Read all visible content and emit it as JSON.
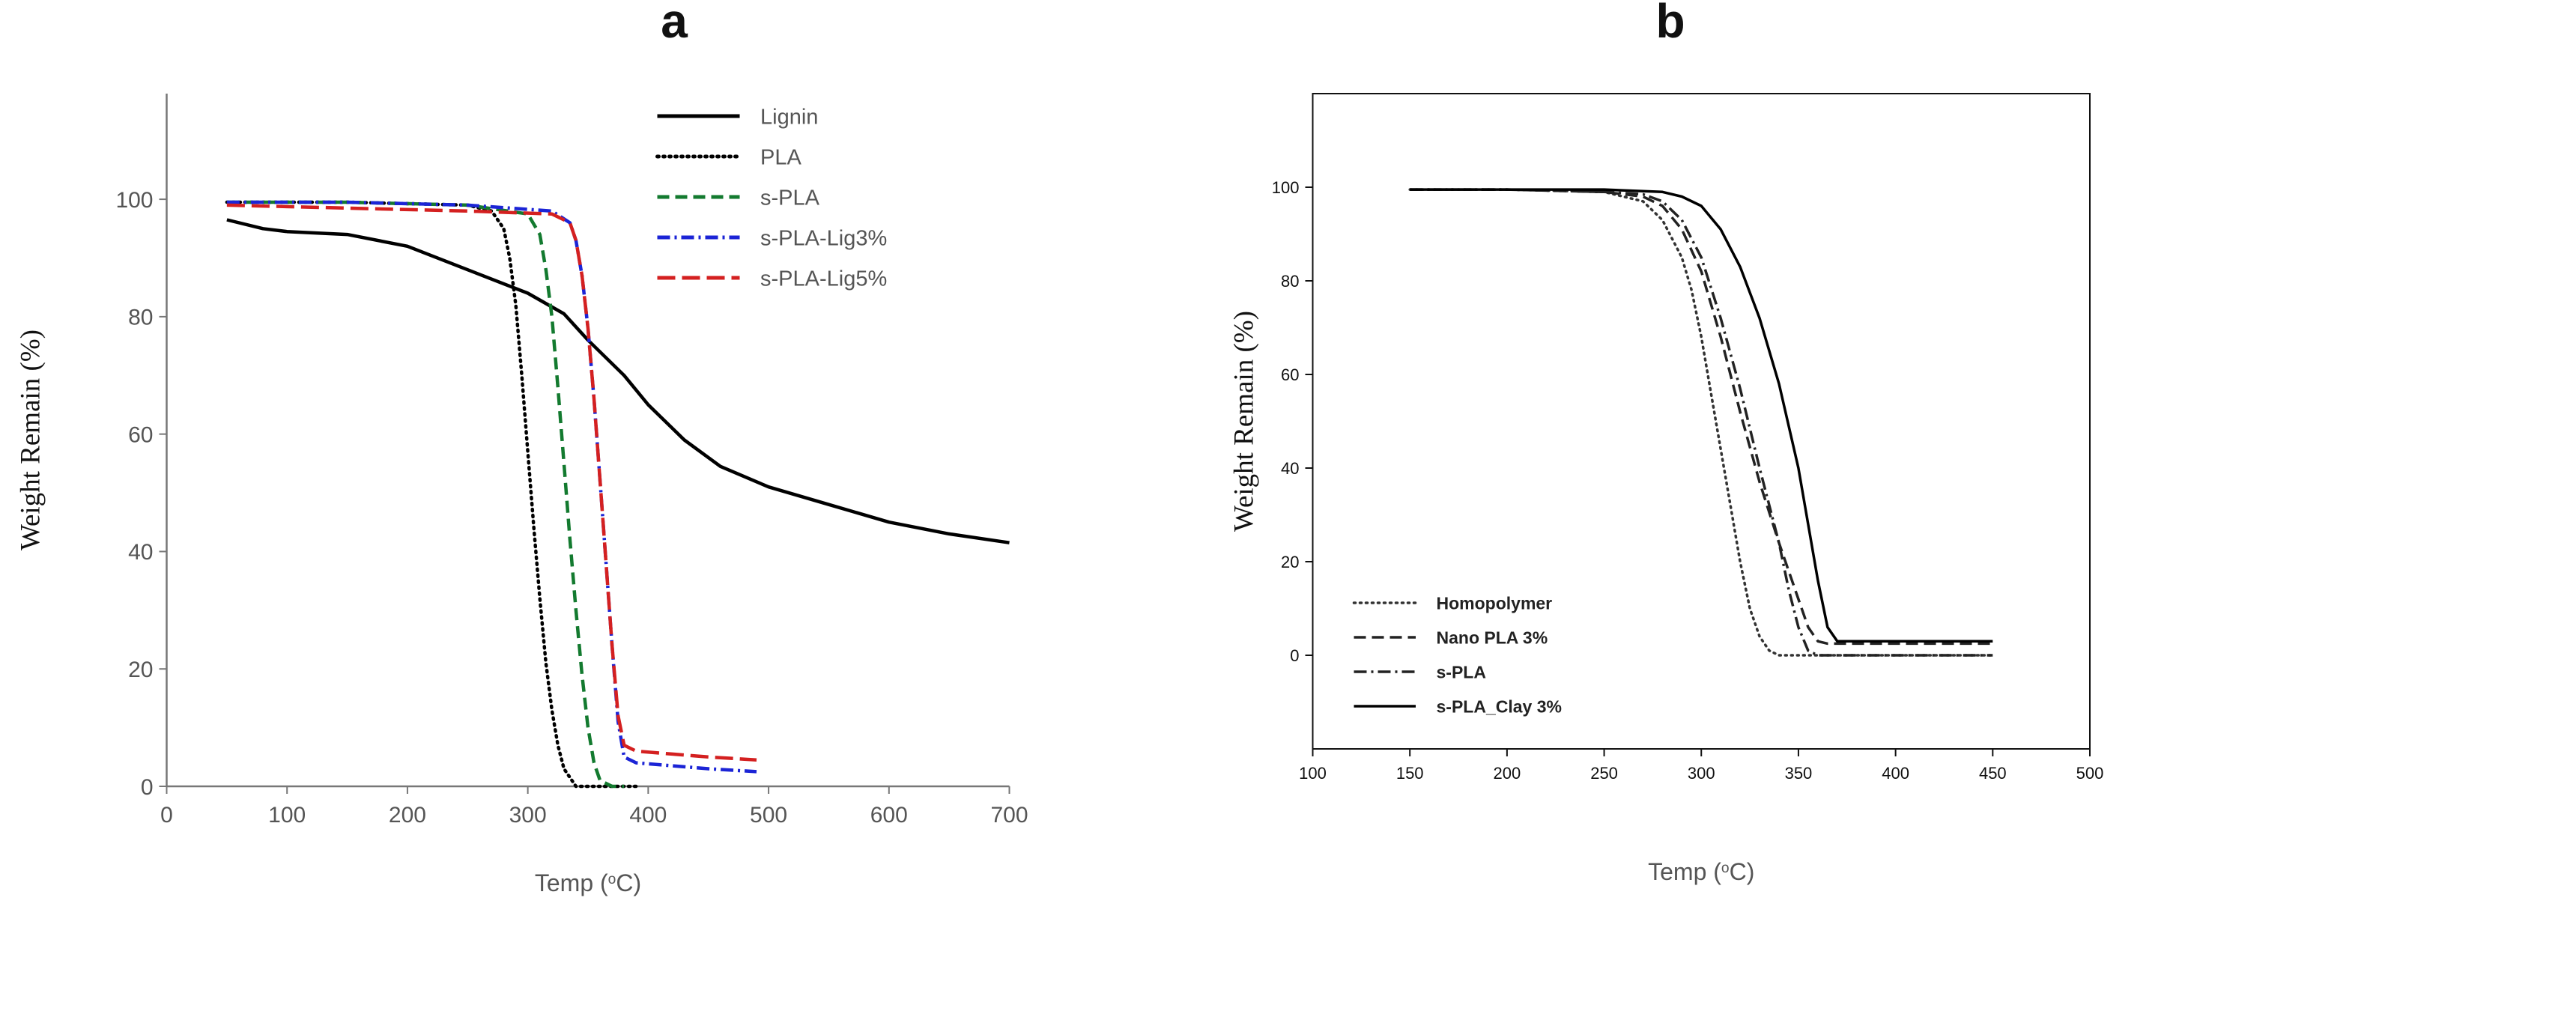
{
  "chart_data": [
    {
      "type": "line",
      "panel": "a",
      "xlabel_main": "Temp (",
      "xlabel_sup": "o",
      "xlabel_end": "C)",
      "ylabel": "Weight Remain (%)",
      "xlim": [
        0,
        700
      ],
      "ylim": [
        0,
        118
      ],
      "xticks": [
        0,
        100,
        200,
        300,
        400,
        500,
        600,
        700
      ],
      "yticks": [
        0,
        20,
        40,
        60,
        80,
        100
      ],
      "grid": false,
      "legend_position": "top-right",
      "series": [
        {
          "name": "Lignin",
          "color": "#000000",
          "dash": "solid",
          "x": [
            50,
            80,
            100,
            150,
            200,
            250,
            300,
            330,
            350,
            380,
            400,
            430,
            460,
            500,
            550,
            600,
            650,
            700
          ],
          "y": [
            96.5,
            95,
            94.5,
            94,
            92,
            88,
            84,
            80.5,
            76,
            70,
            65,
            59,
            54.5,
            51,
            48,
            45,
            43,
            41.5
          ]
        },
        {
          "name": "PLA",
          "color": "#000000",
          "dash": "dot",
          "x": [
            50,
            150,
            250,
            270,
            280,
            285,
            290,
            295,
            300,
            305,
            310,
            315,
            320,
            325,
            330,
            340,
            350,
            390
          ],
          "y": [
            99.5,
            99.5,
            99,
            98,
            95,
            90,
            82,
            70,
            57,
            44,
            32,
            21,
            13,
            7,
            3,
            0,
            0,
            0
          ]
        },
        {
          "name": "s-PLA",
          "color": "#137a2f",
          "dash": "dash",
          "x": [
            50,
            150,
            250,
            300,
            310,
            315,
            320,
            325,
            330,
            335,
            340,
            345,
            350,
            355,
            360,
            370,
            380
          ],
          "y": [
            99.5,
            99.5,
            99,
            97.5,
            94,
            88,
            80,
            68,
            55,
            42,
            30,
            19,
            10,
            4,
            1,
            0,
            0
          ]
        },
        {
          "name": "s-PLA-Lig3%",
          "color": "#1b24d6",
          "dash": "dashdot",
          "x": [
            50,
            150,
            250,
            320,
            335,
            340,
            345,
            350,
            355,
            360,
            365,
            370,
            375,
            380,
            390,
            420,
            450,
            490
          ],
          "y": [
            99.5,
            99.5,
            99,
            98,
            96,
            93,
            87,
            78,
            66,
            52,
            38,
            24,
            11,
            5,
            4,
            3.5,
            3,
            2.5
          ]
        },
        {
          "name": "s-PLA-Lig5%",
          "color": "#d42020",
          "dash": "longdash",
          "x": [
            50,
            150,
            250,
            320,
            335,
            340,
            345,
            350,
            355,
            360,
            365,
            370,
            375,
            380,
            390,
            420,
            450,
            490
          ],
          "y": [
            99,
            98.5,
            98,
            97.5,
            96,
            93,
            87,
            78,
            66,
            52,
            38,
            24,
            12,
            7,
            6,
            5.5,
            5,
            4.5
          ]
        }
      ]
    },
    {
      "type": "line",
      "panel": "b",
      "xlabel_main": "Temp (",
      "xlabel_sup": "o",
      "xlabel_end": "C)",
      "ylabel": "Weight Remain (%)",
      "xlim": [
        100,
        500
      ],
      "ylim": [
        -20,
        120
      ],
      "xticks": [
        100,
        150,
        200,
        250,
        300,
        350,
        400,
        450,
        500
      ],
      "yticks": [
        0,
        20,
        40,
        60,
        80,
        100
      ],
      "grid": false,
      "legend_position": "bottom-left",
      "series": [
        {
          "name": "Homopolymer",
          "color": "#333333",
          "dash": "dot",
          "x": [
            150,
            200,
            250,
            270,
            280,
            290,
            295,
            300,
            305,
            310,
            315,
            320,
            325,
            330,
            335,
            340,
            450
          ],
          "y": [
            99.5,
            99.5,
            99,
            97,
            93,
            85,
            78,
            68,
            56,
            44,
            32,
            20,
            10,
            4,
            1,
            0,
            0
          ]
        },
        {
          "name": "Nano PLA 3%",
          "color": "#222222",
          "dash": "dash",
          "x": [
            150,
            200,
            250,
            270,
            280,
            290,
            300,
            310,
            320,
            330,
            340,
            350,
            355,
            360,
            365,
            450
          ],
          "y": [
            99.5,
            99.5,
            99,
            98,
            96,
            91,
            82,
            68,
            52,
            37,
            24,
            12,
            6,
            3,
            2.5,
            2.5
          ]
        },
        {
          "name": "s-PLA",
          "color": "#222222",
          "dash": "dashdot",
          "x": [
            150,
            200,
            250,
            270,
            280,
            290,
            300,
            310,
            320,
            330,
            340,
            345,
            350,
            355,
            360,
            450
          ],
          "y": [
            99.5,
            99.5,
            99,
            98.5,
            97,
            93,
            85,
            72,
            57,
            40,
            24,
            14,
            6,
            1,
            0,
            0
          ]
        },
        {
          "name": "s-PLA_Clay 3%",
          "color": "#000000",
          "dash": "solid",
          "x": [
            150,
            200,
            250,
            280,
            290,
            300,
            310,
            320,
            330,
            340,
            350,
            355,
            360,
            365,
            370,
            450
          ],
          "y": [
            99.5,
            99.5,
            99.5,
            99,
            98,
            96,
            91,
            83,
            72,
            58,
            40,
            28,
            16,
            6,
            3,
            3
          ]
        }
      ]
    }
  ]
}
